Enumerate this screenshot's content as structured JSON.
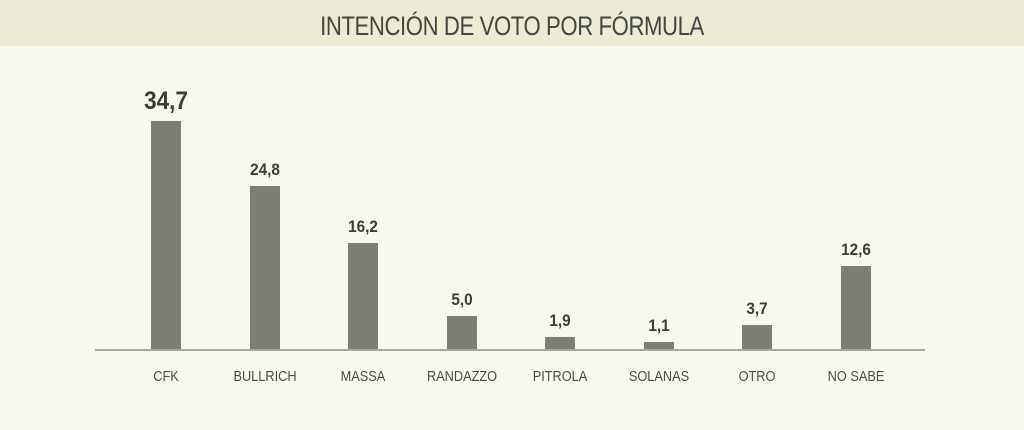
{
  "title": "INTENCIÓN DE VOTO POR FÓRMULA",
  "colors": {
    "header_bg": "#ebecd3",
    "background": "#f8f8ee",
    "bar": "#7d7d76",
    "text": "#454545"
  },
  "chart_data": {
    "type": "bar",
    "title": "INTENCIÓN DE VOTO POR FÓRMULA",
    "categories": [
      "CFK",
      "BULLRICH",
      "MASSA",
      "RANDAZZO",
      "PITROLA",
      "SOLANAS",
      "OTRO",
      "NO SABE"
    ],
    "values": [
      34.7,
      24.8,
      16.2,
      5.0,
      1.9,
      1.1,
      3.7,
      12.6
    ],
    "value_labels": [
      "34,7",
      "24,8",
      "16,2",
      "5,0",
      "1,9",
      "1,1",
      "3,7",
      "12,6"
    ],
    "xlabel": "",
    "ylabel": "",
    "grid": false,
    "legend": null,
    "ylim": [
      0,
      35
    ]
  }
}
